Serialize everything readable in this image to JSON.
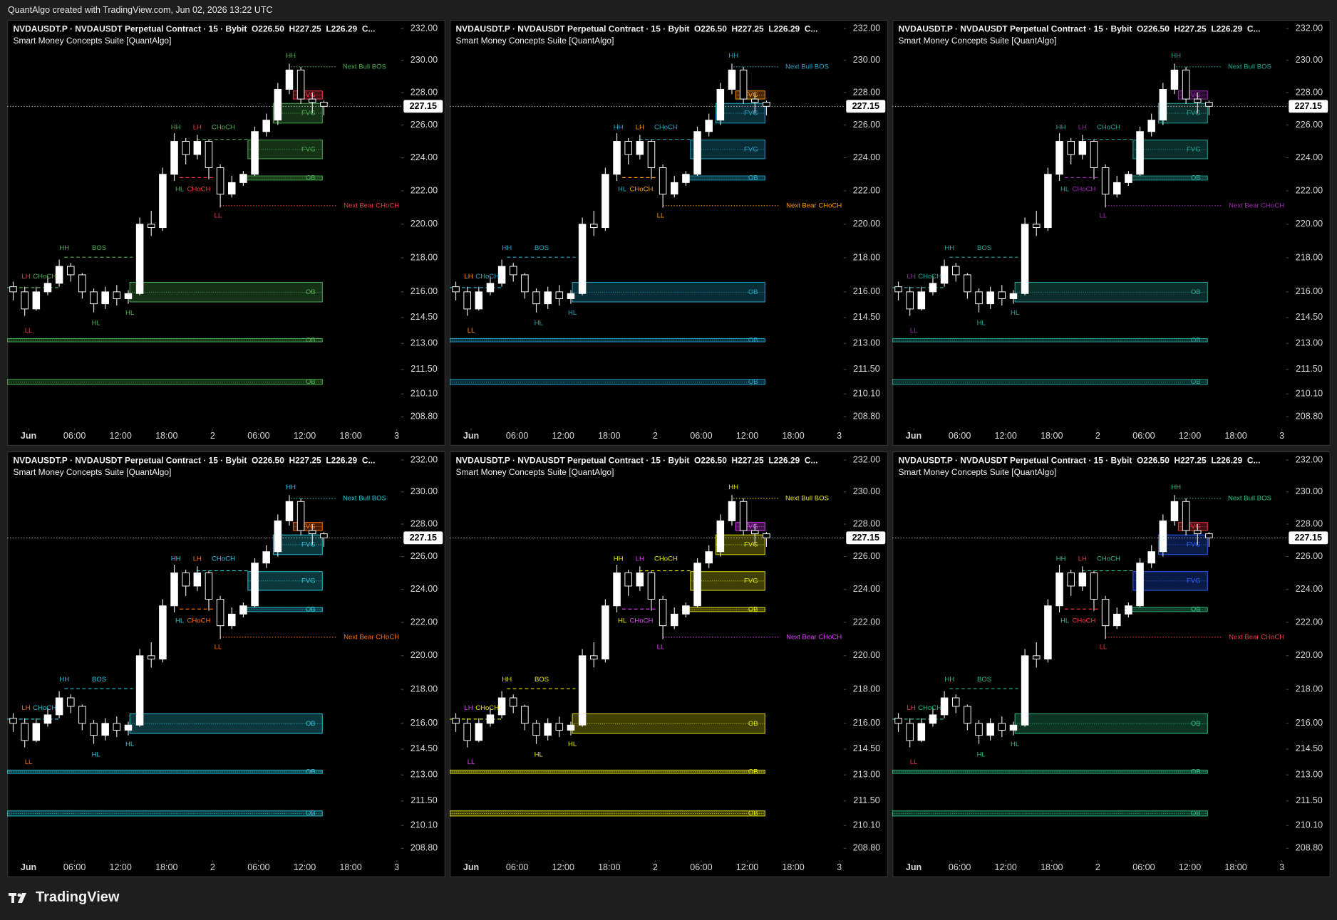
{
  "header": "QuantAlgo created with TradingView.com, Jun 02, 2026 13:22 UTC",
  "footer": "TradingView",
  "chart_data": {
    "type": "candlestick",
    "title": "NVDAUSDT.P · NVDAUSDT Perpetual Contract · 15 · Bybit  O226.50  H227.25  L226.29  C...",
    "subtitle": "Smart Money Concepts Suite [QuantAlgo]",
    "x": [
      -2,
      -0.5,
      1,
      2.5,
      4,
      5.5,
      7,
      8.5,
      10,
      11.5,
      13,
      14.5,
      16,
      17.5,
      19,
      20.5,
      22,
      23.5,
      25,
      26.5,
      28,
      29.5,
      31,
      32.5,
      34,
      35.5,
      37,
      38.5
    ],
    "open": [
      216.3,
      216,
      215,
      216,
      216.5,
      217.5,
      217,
      216,
      215.3,
      216,
      215.6,
      215.9,
      220,
      219.8,
      223,
      225,
      224.2,
      225,
      223.4,
      221.8,
      222.5,
      223,
      225.6,
      226.3,
      228.2,
      229.4,
      227.6,
      227.4
    ],
    "high": [
      216.6,
      216.3,
      216.3,
      216.9,
      217.9,
      217.7,
      217.1,
      216.2,
      216.3,
      216.4,
      216.1,
      220.4,
      220.8,
      223.4,
      225.5,
      225.2,
      225.4,
      225.1,
      223.6,
      222.9,
      223.2,
      225.9,
      226.7,
      228.6,
      229.8,
      229.6,
      228,
      227.5
    ],
    "low": [
      215.5,
      214.6,
      214.9,
      215.8,
      216.3,
      216.6,
      215.6,
      214.8,
      215,
      215.2,
      215.3,
      215.8,
      219.3,
      219.6,
      222.6,
      223.6,
      223.9,
      222.7,
      221,
      221.6,
      222.3,
      222.9,
      225.3,
      226,
      227.9,
      227.3,
      226.7,
      226.6
    ],
    "close": [
      216,
      215,
      216,
      216.5,
      217.5,
      217,
      216,
      215.3,
      216,
      215.6,
      215.9,
      220,
      219.8,
      223,
      225,
      224.2,
      225,
      223.4,
      221.8,
      222.5,
      223,
      225.6,
      226.3,
      228.2,
      229.4,
      227.6,
      227.4,
      227.15
    ],
    "xlim": [
      -2.78,
      48.56
    ],
    "xticks": [
      {
        "value": 0,
        "label": "Jun"
      },
      {
        "value": 6,
        "label": "06:00"
      },
      {
        "value": 12,
        "label": "12:00"
      },
      {
        "value": 18,
        "label": "18:00"
      },
      {
        "value": 24,
        "label": "2"
      },
      {
        "value": 30,
        "label": "06:00"
      },
      {
        "value": 36,
        "label": "12:00"
      },
      {
        "value": 42,
        "label": "18:00"
      },
      {
        "value": 48,
        "label": "3"
      }
    ],
    "ylim": [
      208.8,
      232
    ],
    "log": true,
    "yticks": [
      {
        "value": 232,
        "label": "232.00"
      },
      {
        "value": 230,
        "label": "230.00"
      },
      {
        "value": 228,
        "label": "228.00"
      },
      {
        "value": 226,
        "label": "226.00"
      },
      {
        "value": 224,
        "label": "224.00"
      },
      {
        "value": 222,
        "label": "222.00"
      },
      {
        "value": 220,
        "label": "220.00"
      },
      {
        "value": 218,
        "label": "218.00"
      },
      {
        "value": 216,
        "label": "216.00"
      },
      {
        "value": 214.5,
        "label": "214.50"
      },
      {
        "value": 213,
        "label": "213.00"
      },
      {
        "value": 211.5,
        "label": "211.50"
      },
      {
        "value": 210.1,
        "label": "210.10"
      },
      {
        "value": 208.8,
        "label": "208.80"
      }
    ],
    "last_price": 227.15,
    "labels": [
      {
        "text": "LH",
        "x": -0.33,
        "price": 216.9,
        "side": "bear"
      },
      {
        "text": "CHoCH",
        "x": 2.1,
        "price": 216.9,
        "side": "bull"
      },
      {
        "text": "LL",
        "x": 0,
        "price": 213.73,
        "side": "bear"
      },
      {
        "text": "HH",
        "x": 4.67,
        "price": 218.57,
        "side": "bull"
      },
      {
        "text": "BOS",
        "x": 9.2,
        "price": 218.57,
        "side": "bull"
      },
      {
        "text": "HL",
        "x": 8.8,
        "price": 214.17,
        "side": "bull"
      },
      {
        "text": "HL",
        "x": 13.2,
        "price": 214.76,
        "side": "bull"
      },
      {
        "text": "HH",
        "x": 19.2,
        "price": 225.86,
        "side": "bull"
      },
      {
        "text": "LH",
        "x": 22,
        "price": 225.86,
        "side": "bear"
      },
      {
        "text": "CHoCH",
        "x": 25.4,
        "price": 225.86,
        "side": "bull"
      },
      {
        "text": "HL",
        "x": 19.7,
        "price": 222.08,
        "side": "bull"
      },
      {
        "text": "CHoCH",
        "x": 22.2,
        "price": 222.08,
        "side": "bear"
      },
      {
        "text": "LL",
        "x": 24.7,
        "price": 220.5,
        "side": "bear"
      },
      {
        "text": "HH",
        "x": 34.2,
        "price": 230.29,
        "side": "bull"
      },
      {
        "text": "Next Bull BOS",
        "x": 43.8,
        "price": 229.6,
        "side": "bull"
      },
      {
        "text": "Next Bear CHoCH",
        "x": 44.7,
        "price": 221.11,
        "side": "bear"
      }
    ],
    "zones": [
      {
        "label": "FVG",
        "x0": 34.5,
        "x1": 38.3,
        "top": 228.1,
        "bottom": 227.6,
        "side": "bear"
      },
      {
        "label": "FVG",
        "x0": 31.9,
        "x1": 38.3,
        "top": 227.33,
        "bottom": 226.12,
        "side": "fvg"
      },
      {
        "label": "FVG",
        "x0": 28.6,
        "x1": 38.3,
        "top": 225.08,
        "bottom": 223.94,
        "side": "fvg"
      },
      {
        "label": "OB",
        "x0": 28.2,
        "x1": 38.3,
        "top": 222.9,
        "bottom": 222.65,
        "side": "ob"
      },
      {
        "label": "OB",
        "x0": 13.2,
        "x1": 38.3,
        "top": 216.56,
        "bottom": 215.41,
        "side": "ob"
      },
      {
        "label": "OB",
        "x0": -2.78,
        "x1": 38.3,
        "top": 213.28,
        "bottom": 213.09,
        "side": "ob"
      },
      {
        "label": "OB",
        "x0": -2.78,
        "x1": 38.3,
        "top": 210.93,
        "bottom": 210.64,
        "side": "ob"
      }
    ],
    "lines": [
      {
        "x0": -2.78,
        "x1": 3.9,
        "price": 216.25,
        "side": "bull",
        "style": "dashed"
      },
      {
        "x0": 4.67,
        "x1": 13.6,
        "price": 218.04,
        "side": "bull",
        "style": "dashed"
      },
      {
        "x0": 21.9,
        "x1": 28.6,
        "price": 225.13,
        "side": "bull",
        "style": "dashed"
      },
      {
        "x0": 19.7,
        "x1": 24.1,
        "price": 222.8,
        "side": "bear",
        "style": "dashed"
      },
      {
        "x0": 34.2,
        "x1": 40.2,
        "price": 229.6,
        "side": "bull",
        "style": "dotted"
      },
      {
        "x0": 25,
        "x1": 40.2,
        "price": 221.11,
        "side": "bear",
        "style": "dotted"
      }
    ],
    "panels": [
      {
        "bull": "#4caf50",
        "bear": "#f23645",
        "fvg": "#4caf50",
        "ob": "#4caf50"
      },
      {
        "bull": "#22a7c9",
        "bear": "#ff9800",
        "fvg": "#22a7c9",
        "ob": "#22a7c9"
      },
      {
        "bull": "#26a69a",
        "bear": "#9c27b0",
        "fvg": "#26a69a",
        "ob": "#26a69a"
      },
      {
        "bull": "#26c6da",
        "bear": "#ff6d00",
        "fvg": "#26c6da",
        "ob": "#26c6da"
      },
      {
        "bull": "#e5e510",
        "bear": "#e040fb",
        "fvg": "#e5e510",
        "ob": "#e5e510"
      },
      {
        "bull": "#2ebd85",
        "bear": "#f23645",
        "fvg": "#2962ff",
        "ob": "#2ebd85"
      }
    ]
  }
}
